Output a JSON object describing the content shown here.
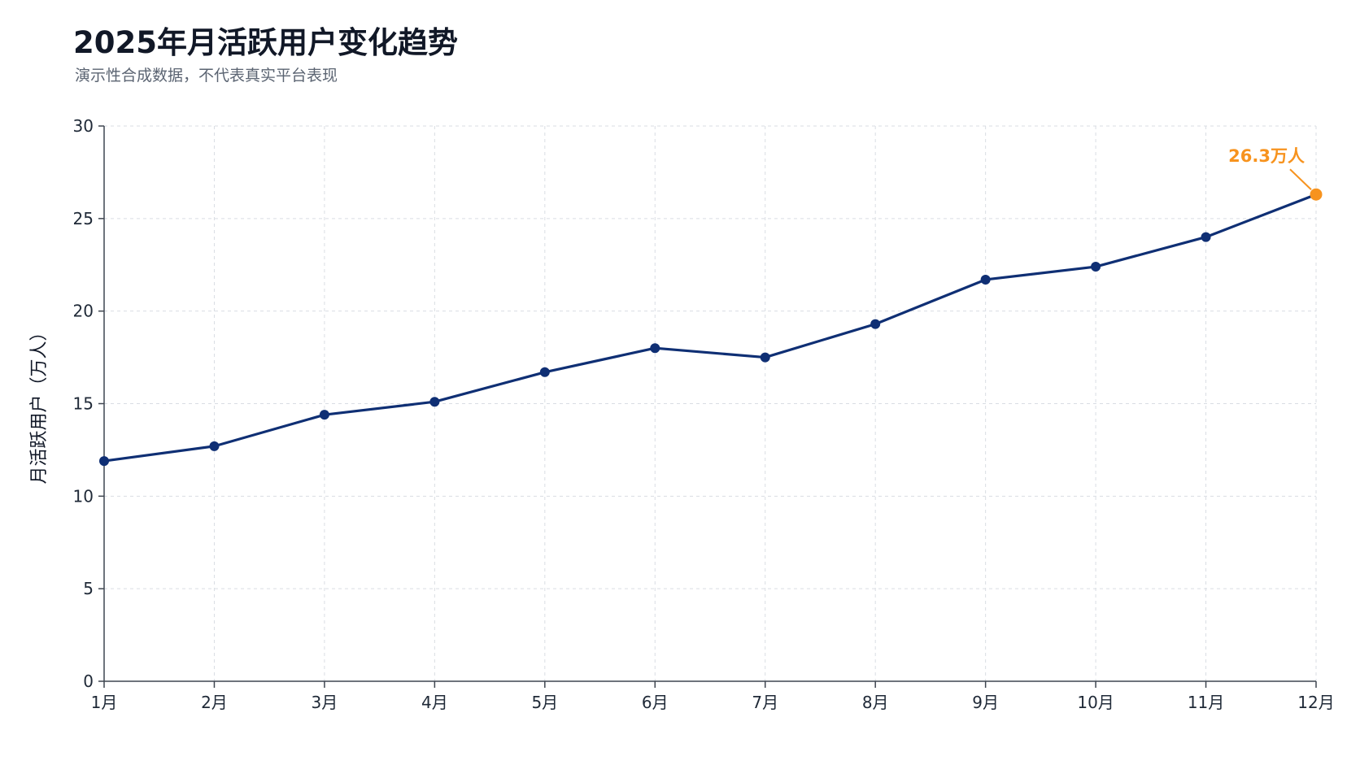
{
  "header": {
    "title": "2025年月活跃用户变化趋势",
    "subtitle": "演示性合成数据，不代表真实平台表现"
  },
  "colors": {
    "line": "#0f2f74",
    "highlight": "#f7931e",
    "grid": "#d9dde3",
    "axis": "#3f4650"
  },
  "chart_data": {
    "type": "line",
    "title": "2025年月活跃用户变化趋势",
    "subtitle": "演示性合成数据，不代表真实平台表现",
    "xlabel": "",
    "ylabel": "月活跃用户（万人）",
    "categories": [
      "1月",
      "2月",
      "3月",
      "4月",
      "5月",
      "6月",
      "7月",
      "8月",
      "9月",
      "10月",
      "11月",
      "12月"
    ],
    "series": [
      {
        "values": [
          11.9,
          12.7,
          14.4,
          15.1,
          16.7,
          18.0,
          17.5,
          19.3,
          21.7,
          22.4,
          24.0,
          26.3
        ]
      }
    ],
    "ylim": [
      0,
      30
    ],
    "yticks": [
      0,
      5,
      10,
      15,
      20,
      25,
      30
    ],
    "grid": true,
    "legend": "none",
    "annotation": {
      "text": "26.3万人",
      "category": "12月",
      "value": 26.3
    }
  }
}
